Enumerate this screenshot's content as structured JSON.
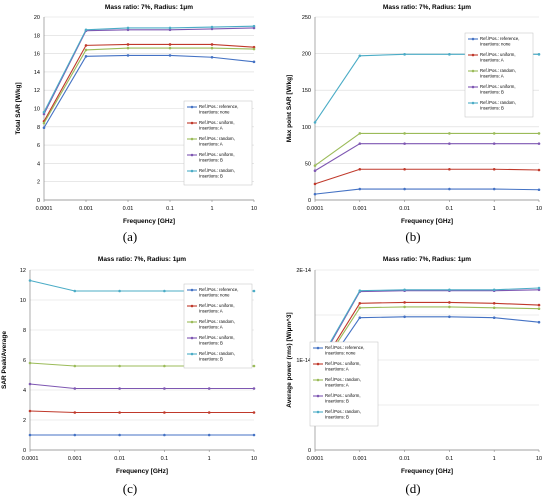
{
  "chart_data": [
    {
      "type": "line",
      "panel_label": "(a)",
      "title": "Mass ratio: 7%, Radius: 1μm",
      "xlabel": "Frequency [GHz]",
      "ylabel": "Total SAR [W/kg]",
      "x": [
        "0.0001",
        "0.001",
        "0.01",
        "0.1",
        "1",
        "10"
      ],
      "ylim": [
        0,
        20
      ],
      "yticks": [
        "0",
        "2",
        "4",
        "6",
        "8",
        "10",
        "12",
        "14",
        "16",
        "18",
        "20"
      ],
      "legend_position": "middle-right",
      "series": [
        {
          "name": "Ref./Pos.: reference, Insertions: none",
          "color": "#4472C4",
          "values": [
            7.9,
            15.7,
            15.8,
            15.8,
            15.6,
            15.1
          ]
        },
        {
          "name": "Ref./Pos.: uniform, Insertions: A",
          "color": "#C0392B",
          "values": [
            8.6,
            16.9,
            17.0,
            17.0,
            17.0,
            16.7
          ]
        },
        {
          "name": "Ref./Pos.: random, Insertions: A",
          "color": "#9BBB59",
          "values": [
            8.4,
            16.4,
            16.6,
            16.6,
            16.6,
            16.5
          ]
        },
        {
          "name": "Ref./Pos.: uniform, Insertions: B",
          "color": "#7E57B2",
          "values": [
            9.4,
            18.5,
            18.6,
            18.6,
            18.7,
            18.8
          ]
        },
        {
          "name": "Ref./Pos.: random, Insertions: B",
          "color": "#4BACC6",
          "values": [
            9.6,
            18.6,
            18.8,
            18.8,
            18.9,
            19.0
          ]
        }
      ]
    },
    {
      "type": "line",
      "panel_label": "(b)",
      "title": "Mass ratio: 7%, Radius: 1μm",
      "xlabel": "Frequency [GHz]",
      "ylabel": "Max point SAR [W/kg]",
      "x": [
        "0.0001",
        "0.001",
        "0.01",
        "0.1",
        "1",
        "10"
      ],
      "ylim": [
        0,
        250
      ],
      "yticks": [
        "0",
        "50",
        "100",
        "150",
        "200",
        "250"
      ],
      "legend_position": "top-right",
      "series": [
        {
          "name": "Ref./Pos.: reference, Insertions: none",
          "color": "#4472C4",
          "values": [
            8,
            15,
            15,
            15,
            15,
            14
          ]
        },
        {
          "name": "Ref./Pos.: uniform, Insertions: A",
          "color": "#C0392B",
          "values": [
            22,
            42,
            42,
            42,
            42,
            41
          ]
        },
        {
          "name": "Ref./Pos.: random, Insertions: A",
          "color": "#9BBB59",
          "values": [
            47,
            91,
            91,
            91,
            91,
            91
          ]
        },
        {
          "name": "Ref./Pos.: uniform, Insertions: B",
          "color": "#7E57B2",
          "values": [
            40,
            77,
            77,
            77,
            77,
            77
          ]
        },
        {
          "name": "Ref./Pos.: random, Insertions: B",
          "color": "#4BACC6",
          "values": [
            106,
            197,
            199,
            199,
            199,
            199
          ]
        }
      ]
    },
    {
      "type": "line",
      "panel_label": "(c)",
      "title": "Mass ratio: 7%, Radius: 1μm",
      "xlabel": "Frequency [GHz]",
      "ylabel": "SAR Peak/Average",
      "x": [
        "0.0001",
        "0.001",
        "0.01",
        "0.1",
        "1",
        "10"
      ],
      "ylim": [
        0,
        12
      ],
      "yticks": [
        "0",
        "2",
        "4",
        "6",
        "8",
        "10",
        "12"
      ],
      "legend_position": "top-right",
      "series": [
        {
          "name": "Ref./Pos.: reference, Insertions: none",
          "color": "#4472C4",
          "values": [
            1.0,
            1.0,
            1.0,
            1.0,
            1.0,
            1.0
          ]
        },
        {
          "name": "Ref./Pos.: uniform, Insertions: A",
          "color": "#C0392B",
          "values": [
            2.6,
            2.5,
            2.5,
            2.5,
            2.5,
            2.5
          ]
        },
        {
          "name": "Ref./Pos.: random, Insertions: A",
          "color": "#9BBB59",
          "values": [
            5.8,
            5.6,
            5.6,
            5.6,
            5.6,
            5.6
          ]
        },
        {
          "name": "Ref./Pos.: uniform, Insertions: B",
          "color": "#7E57B2",
          "values": [
            4.4,
            4.1,
            4.1,
            4.1,
            4.1,
            4.1
          ]
        },
        {
          "name": "Ref./Pos.: random, Insertions: B",
          "color": "#4BACC6",
          "values": [
            11.3,
            10.6,
            10.6,
            10.6,
            10.6,
            10.6
          ]
        }
      ]
    },
    {
      "type": "line",
      "panel_label": "(d)",
      "title": "Mass ratio: 7%, Radius: 1μm",
      "xlabel": "Frequency [GHz]",
      "ylabel": "Average power (rms) [W/µm^3]",
      "x": [
        "0.0001",
        "0.001",
        "0.01",
        "0.1",
        "1",
        "10"
      ],
      "ylim": [
        0,
        2e-14
      ],
      "yticks": [
        "0",
        "",
        "1E-14",
        "",
        "2E-14"
      ],
      "yticks_values": [
        0,
        5e-15,
        1e-14,
        1.5e-14,
        2e-14
      ],
      "legend_position": "bottom-left",
      "series": [
        {
          "name": "Ref./Pos.: reference, Insertions: none",
          "color": "#4472C4",
          "values": [
            7.4e-15,
            1.47e-14,
            1.48e-14,
            1.48e-14,
            1.47e-14,
            1.42e-14
          ]
        },
        {
          "name": "Ref./Pos.: uniform, Insertions: A",
          "color": "#C0392B",
          "values": [
            8.3e-15,
            1.63e-14,
            1.64e-14,
            1.64e-14,
            1.63e-14,
            1.61e-14
          ]
        },
        {
          "name": "Ref./Pos.: random, Insertions: A",
          "color": "#9BBB59",
          "values": [
            8.1e-15,
            1.58e-14,
            1.59e-14,
            1.59e-14,
            1.58e-14,
            1.57e-14
          ]
        },
        {
          "name": "Ref./Pos.: uniform, Insertions: B",
          "color": "#7E57B2",
          "values": [
            8.8e-15,
            1.76e-14,
            1.77e-14,
            1.77e-14,
            1.77e-14,
            1.78e-14
          ]
        },
        {
          "name": "Ref./Pos.: random, Insertions: B",
          "color": "#4BACC6",
          "values": [
            9e-15,
            1.77e-14,
            1.78e-14,
            1.78e-14,
            1.78e-14,
            1.8e-14
          ]
        }
      ]
    }
  ]
}
